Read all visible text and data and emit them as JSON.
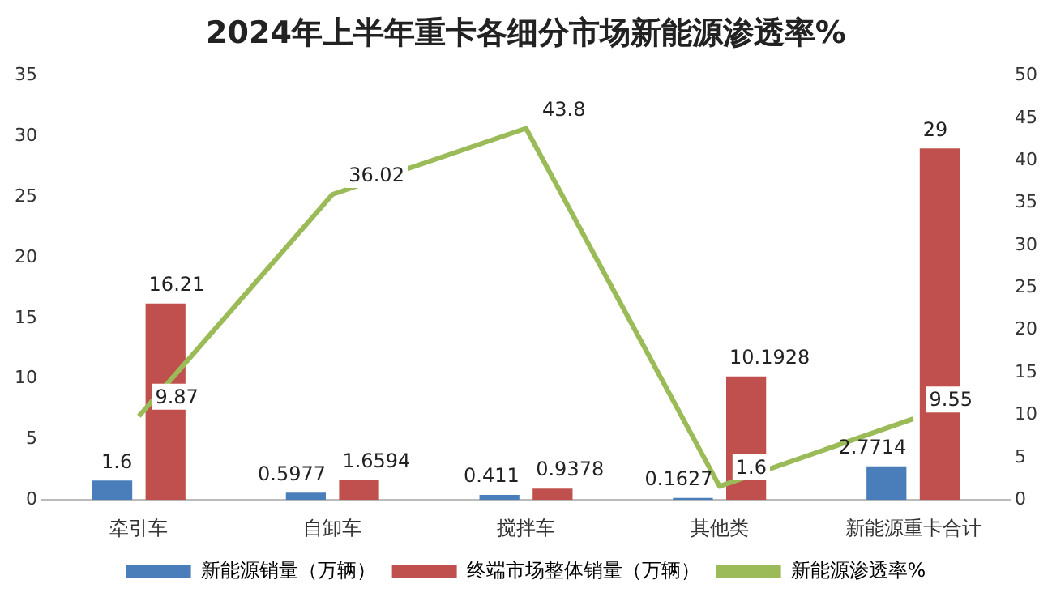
{
  "chart_data": {
    "type": "bar",
    "title": "2024年上半年重卡各细分市场新能源渗透率%",
    "categories": [
      "牵引车",
      "自卸车",
      "搅拌车",
      "其他类",
      "新能源重卡合计"
    ],
    "series": [
      {
        "name": "新能源销量（万辆）",
        "color": "#4a7ebb",
        "values": [
          1.6,
          0.5977,
          0.411,
          0.1627,
          2.7714
        ]
      },
      {
        "name": "终端市场整体销量（万辆）",
        "color": "#c0504d",
        "values": [
          16.21,
          1.6594,
          0.9378,
          10.1928,
          29
        ]
      },
      {
        "name": "新能源渗透率%",
        "type": "line",
        "axis": "y2",
        "color": "#9bbb59",
        "values": [
          9.87,
          36.02,
          43.8,
          1.6,
          9.55
        ]
      }
    ],
    "ylim": [
      0,
      35
    ],
    "yticks": [
      0,
      5,
      10,
      15,
      20,
      25,
      30,
      35
    ],
    "y2lim": [
      0,
      50
    ],
    "y2ticks": [
      0,
      5,
      10,
      15,
      20,
      25,
      30,
      35,
      40,
      45,
      50
    ],
    "grid": false,
    "legend": "bottom",
    "marker": "none",
    "data_labels": true
  }
}
